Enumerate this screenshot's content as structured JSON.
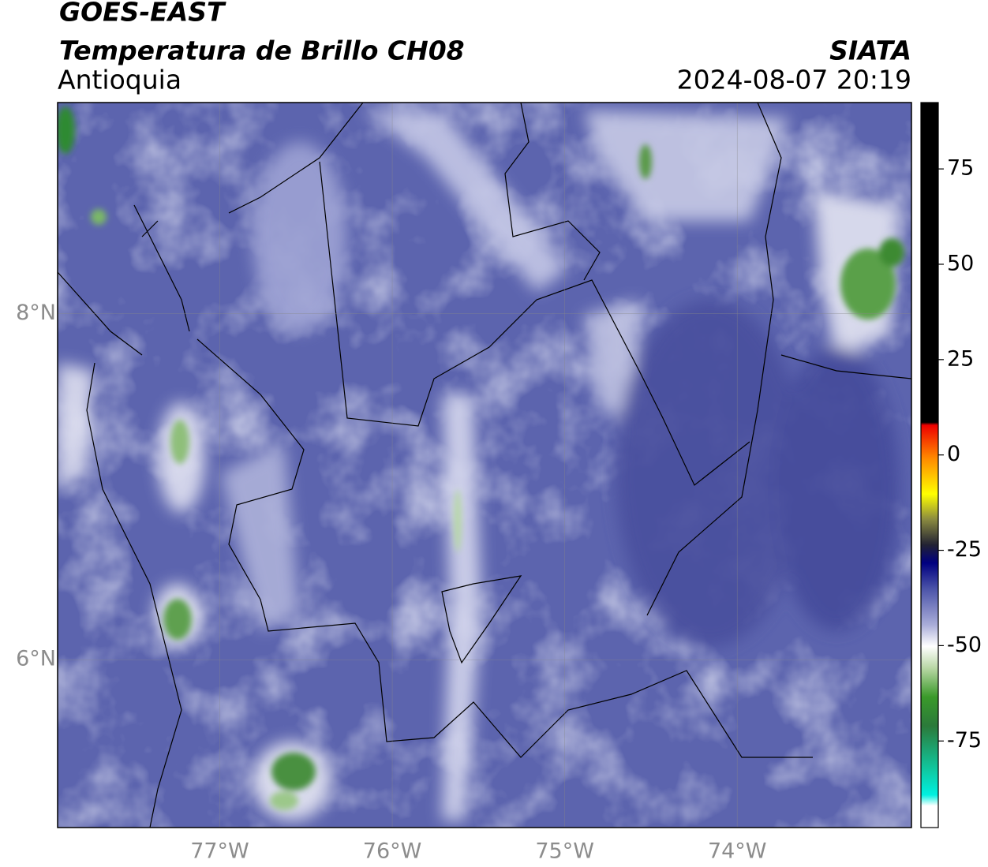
{
  "header": {
    "title": "GOES-EAST",
    "subtitle": "Temperatura de Brillo CH08",
    "region": "Antioquia",
    "source": "SIATA",
    "datetime": "2024-08-07 20:19"
  },
  "map": {
    "lonlim": [
      -77.94,
      -72.99
    ],
    "latlim": [
      5.03,
      9.22
    ],
    "lon_ticks": [
      {
        "value": -77,
        "label": "77°W"
      },
      {
        "value": -76,
        "label": "76°W"
      },
      {
        "value": -75,
        "label": "75°W"
      },
      {
        "value": -74,
        "label": "74°W"
      }
    ],
    "lat_ticks": [
      {
        "value": 8,
        "label": "8°N"
      },
      {
        "value": 6,
        "label": "6°N"
      }
    ]
  },
  "colorbar": {
    "lim": [
      -97.7,
      92.4
    ],
    "ticks": [
      75,
      50,
      25,
      0,
      -25,
      -50,
      -75
    ]
  }
}
